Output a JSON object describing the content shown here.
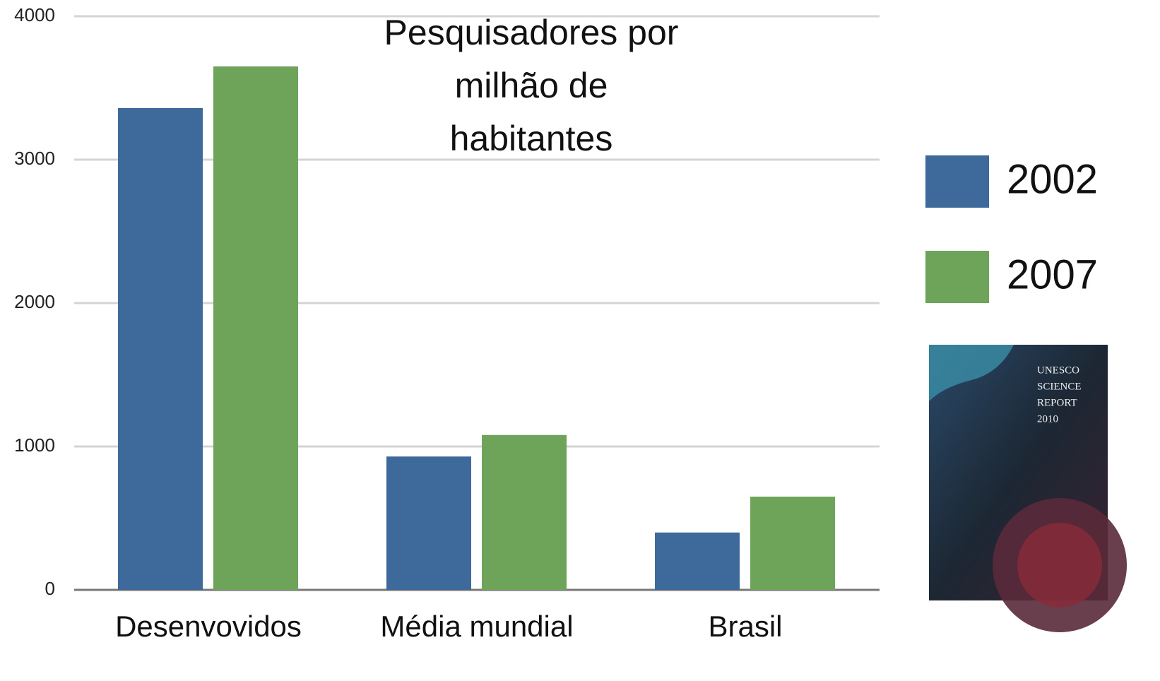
{
  "chart_data": {
    "type": "bar",
    "title": [
      "Pesquisadores por",
      "milhão de",
      "habitantes"
    ],
    "categories": [
      "Desenvovidos",
      "Média mundial",
      "Brasil"
    ],
    "series": [
      {
        "name": "2002",
        "color": "#3d6a9a",
        "values": [
          3360,
          930,
          400
        ]
      },
      {
        "name": "2007",
        "color": "#6ea35a",
        "values": [
          3650,
          1080,
          650
        ]
      }
    ],
    "ylim": [
      0,
      4000
    ],
    "yticks": [
      0,
      1000,
      2000,
      3000,
      4000
    ],
    "grid": true,
    "legend": "right",
    "cover_text": [
      "UNESCO",
      "SCIENCE",
      "REPORT",
      "2010"
    ]
  }
}
